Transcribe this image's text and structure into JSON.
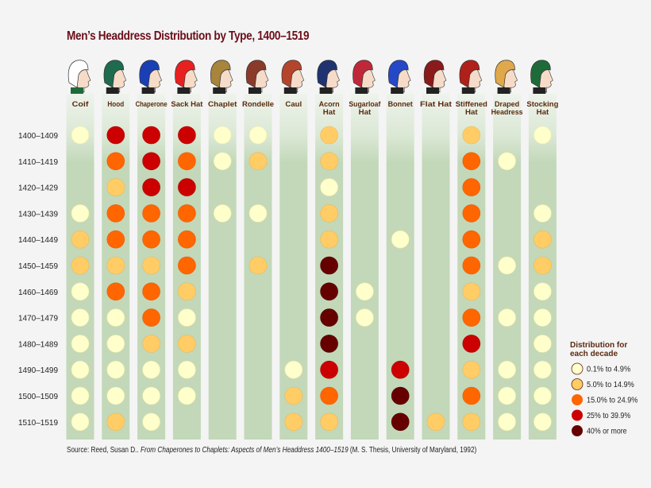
{
  "title": "Men’s Headdress Distribution by Type, 1400–1519",
  "source": {
    "prefix": "Source: Reed, Susan D.. ",
    "work": "From Chaperones to Chaplets: Aspects of Men’s Headdress 1400–1519",
    "suffix": " (M. S. Thesis, University of Maryland, 1992)"
  },
  "chart_data": {
    "type": "heatmap",
    "title": "Men’s Headdress Distribution by Type, 1400–1519",
    "rows": [
      "1400–1409",
      "1410–1419",
      "1420–1429",
      "1430–1439",
      "1440–1449",
      "1450–1459",
      "1460–1469",
      "1470–1479",
      "1480–1489",
      "1490–1499",
      "1500–1509",
      "1510–1519"
    ],
    "columns": [
      {
        "name": "Coif",
        "lines": [
          "Coif"
        ],
        "hat_color": "#ffffff",
        "levels": [
          1,
          0,
          0,
          1,
          2,
          2,
          1,
          1,
          1,
          1,
          1,
          1
        ]
      },
      {
        "name": "Hood",
        "lines": [
          "Hood"
        ],
        "hat_color": "#1e6b4f",
        "levels": [
          4,
          3,
          2,
          3,
          3,
          2,
          3,
          1,
          1,
          1,
          1,
          2
        ]
      },
      {
        "name": "Chaperone",
        "lines": [
          "Chaperone"
        ],
        "hat_color": "#1a3fb5",
        "levels": [
          4,
          4,
          4,
          3,
          3,
          2,
          3,
          3,
          2,
          1,
          1,
          1
        ]
      },
      {
        "name": "Sack Hat",
        "lines": [
          "Sack Hat"
        ],
        "hat_color": "#e82020",
        "levels": [
          4,
          3,
          4,
          3,
          3,
          3,
          2,
          1,
          2,
          1,
          1,
          0
        ]
      },
      {
        "name": "Chaplet",
        "lines": [
          "Chaplet"
        ],
        "hat_color": "#a8843c",
        "levels": [
          1,
          1,
          0,
          1,
          0,
          0,
          0,
          0,
          0,
          0,
          0,
          0
        ]
      },
      {
        "name": "Rondelle",
        "lines": [
          "Rondelle"
        ],
        "hat_color": "#8b3a2a",
        "levels": [
          1,
          2,
          0,
          1,
          0,
          2,
          0,
          0,
          0,
          0,
          0,
          0
        ]
      },
      {
        "name": "Caul",
        "lines": [
          "Caul"
        ],
        "hat_color": "#b5442c",
        "levels": [
          0,
          0,
          0,
          0,
          0,
          0,
          0,
          0,
          0,
          1,
          2,
          2
        ]
      },
      {
        "name": "Acorn Hat",
        "lines": [
          "Acorn",
          "Hat"
        ],
        "hat_color": "#1f3370",
        "levels": [
          2,
          2,
          1,
          2,
          2,
          5,
          5,
          5,
          5,
          4,
          3,
          2
        ]
      },
      {
        "name": "Sugarloaf Hat",
        "lines": [
          "Sugarloaf",
          "Hat"
        ],
        "hat_color": "#c0283a",
        "levels": [
          0,
          0,
          0,
          0,
          0,
          0,
          1,
          1,
          0,
          0,
          0,
          0
        ]
      },
      {
        "name": "Bonnet",
        "lines": [
          "Bonnet"
        ],
        "hat_color": "#2448c8",
        "levels": [
          0,
          0,
          0,
          0,
          1,
          0,
          0,
          0,
          0,
          4,
          5,
          5
        ]
      },
      {
        "name": "Flat Hat",
        "lines": [
          "Flat Hat"
        ],
        "hat_color": "#8b1a1a",
        "levels": [
          0,
          0,
          0,
          0,
          0,
          0,
          0,
          0,
          0,
          0,
          0,
          2
        ]
      },
      {
        "name": "Stiffened Hat",
        "lines": [
          "Stiffened",
          "Hat"
        ],
        "hat_color": "#b0201a",
        "levels": [
          2,
          3,
          3,
          3,
          3,
          3,
          2,
          3,
          4,
          2,
          3,
          2
        ]
      },
      {
        "name": "Draped Headress",
        "lines": [
          "Draped",
          "Headress"
        ],
        "hat_color": "#e0a84a",
        "levels": [
          0,
          1,
          0,
          0,
          0,
          1,
          0,
          1,
          0,
          1,
          1,
          1
        ]
      },
      {
        "name": "Stocking Hat",
        "lines": [
          "Stocking",
          "Hat"
        ],
        "hat_color": "#1e6b3a",
        "levels": [
          1,
          0,
          0,
          1,
          2,
          2,
          1,
          1,
          1,
          1,
          1,
          1
        ]
      }
    ],
    "legend": {
      "title_lines": [
        "Distribution for",
        "each decade"
      ],
      "placement": "bottom-right",
      "items": [
        {
          "level": 1,
          "label": "0.1% to 4.9%",
          "color": "#ffffcc"
        },
        {
          "level": 2,
          "label": "5.0% to 14.9%",
          "color": "#ffcc66"
        },
        {
          "level": 3,
          "label": "15.0% to 24.9%",
          "color": "#ff6600"
        },
        {
          "level": 4,
          "label": "25% to 39.9%",
          "color": "#cc0000"
        },
        {
          "level": 5,
          "label": "40% or more",
          "color": "#660000"
        }
      ]
    },
    "column_color": "#c2d8b9"
  }
}
